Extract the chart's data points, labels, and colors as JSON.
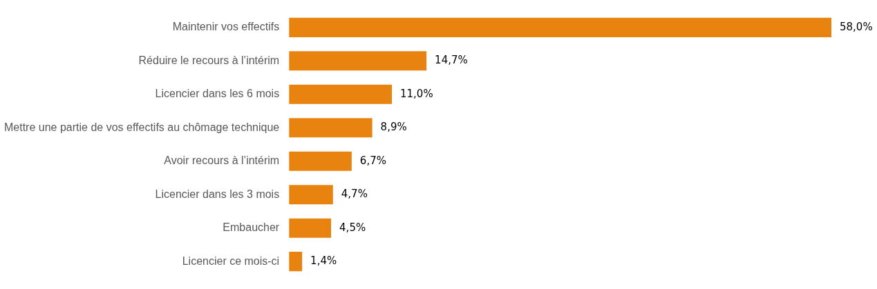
{
  "chart_data": {
    "type": "bar",
    "orientation": "horizontal",
    "categories": [
      "Maintenir vos effectifs",
      "Réduire le recours à l’intérim",
      "Licencier dans les 6 mois",
      "Mettre une partie de vos effectifs au chômage technique",
      "Avoir recours à l’intérim",
      "Licencier dans les 3 mois",
      "Embaucher",
      "Licencier ce mois-ci"
    ],
    "values": [
      58.0,
      14.7,
      11.0,
      8.9,
      6.7,
      4.7,
      4.5,
      1.4
    ],
    "value_labels": [
      "58,0%",
      "14,7%",
      "11,0%",
      "8,9%",
      "6,7%",
      "4,7%",
      "4,5%",
      "1,4%"
    ],
    "color": "#e8830f",
    "grid": false,
    "legend": false,
    "tick_labels": "y"
  }
}
